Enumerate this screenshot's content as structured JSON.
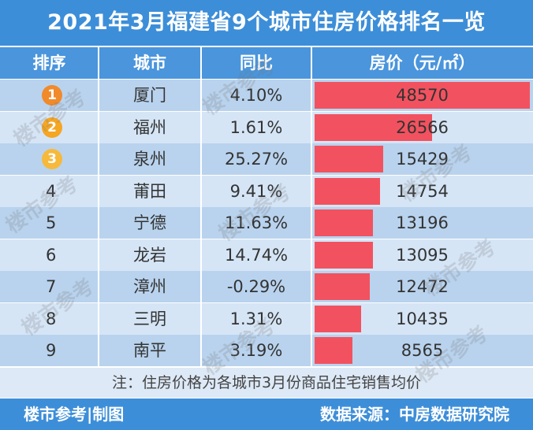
{
  "title": "2021年3月福建省9个城市住房价格排名一览",
  "headers": {
    "rank": "排序",
    "city": "城市",
    "yoy": "同比",
    "price": "房价（元/㎡）"
  },
  "rows": [
    {
      "rank": "1",
      "city": "厦门",
      "yoy": "4.10%",
      "price": "48570"
    },
    {
      "rank": "2",
      "city": "福州",
      "yoy": "1.61%",
      "price": "26566"
    },
    {
      "rank": "3",
      "city": "泉州",
      "yoy": "25.27%",
      "price": "15429"
    },
    {
      "rank": "4",
      "city": "莆田",
      "yoy": "9.41%",
      "price": "14754"
    },
    {
      "rank": "5",
      "city": "宁德",
      "yoy": "11.63%",
      "price": "13196"
    },
    {
      "rank": "6",
      "city": "龙岩",
      "yoy": "14.74%",
      "price": "13095"
    },
    {
      "rank": "7",
      "city": "漳州",
      "yoy": "-0.29%",
      "price": "12472"
    },
    {
      "rank": "8",
      "city": "三明",
      "yoy": "1.31%",
      "price": "10435"
    },
    {
      "rank": "9",
      "city": "南平",
      "yoy": "3.19%",
      "price": "8565"
    }
  ],
  "note": "注：住房价格为各城市3月份商品住宅销售均价",
  "footer": {
    "left": "楼市参考|制图",
    "right": "数据来源：中房数据研究院"
  },
  "watermark": "楼市参考",
  "colors": {
    "header": "#3d8ed8",
    "bar": "#f2525f",
    "row_dark": "#b9d3ee",
    "row_light": "#d5e5f6",
    "gold": "#f5a623",
    "orange": "#f08a2b",
    "light_gold": "#f6b93b"
  },
  "chart_data": {
    "type": "table",
    "title": "2021年3月福建省9个城市住房价格排名一览",
    "columns": [
      "排序",
      "城市",
      "同比",
      "房价（元/㎡）"
    ],
    "categories": [
      "厦门",
      "福州",
      "泉州",
      "莆田",
      "宁德",
      "龙岩",
      "漳州",
      "三明",
      "南平"
    ],
    "series": [
      {
        "name": "房价（元/㎡）",
        "values": [
          48570,
          26566,
          15429,
          14754,
          13196,
          13095,
          12472,
          10435,
          8565
        ]
      },
      {
        "name": "同比",
        "values": [
          4.1,
          1.61,
          25.27,
          9.41,
          11.63,
          14.74,
          -0.29,
          1.31,
          3.19
        ]
      }
    ]
  }
}
